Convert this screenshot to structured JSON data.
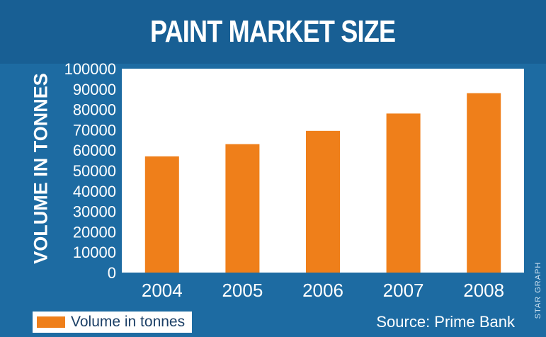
{
  "header": {
    "title": "PAINT MARKET SIZE"
  },
  "footer": {
    "source": "Source: Prime Bank",
    "credit": "STAR GRAPH"
  },
  "colors": {
    "bar": "#ef7f1a",
    "plot_background": "#ffffff",
    "frame": "#1d6ba2"
  },
  "chart_data": {
    "type": "bar",
    "title": "PAINT MARKET SIZE",
    "ylabel": "VOLUME IN TONNES",
    "xlabel": "",
    "categories": [
      "2004",
      "2005",
      "2006",
      "2007",
      "2008"
    ],
    "series": [
      {
        "name": "Volume in tonnes",
        "values": [
          57000,
          63000,
          69500,
          78000,
          88000
        ]
      }
    ],
    "ylim": [
      0,
      100000
    ],
    "yticks": [
      "0",
      "10000",
      "20000",
      "30000",
      "40000",
      "50000",
      "60000",
      "70000",
      "80000",
      "90000",
      "100000"
    ],
    "grid": false,
    "legend": "bottom-left"
  }
}
